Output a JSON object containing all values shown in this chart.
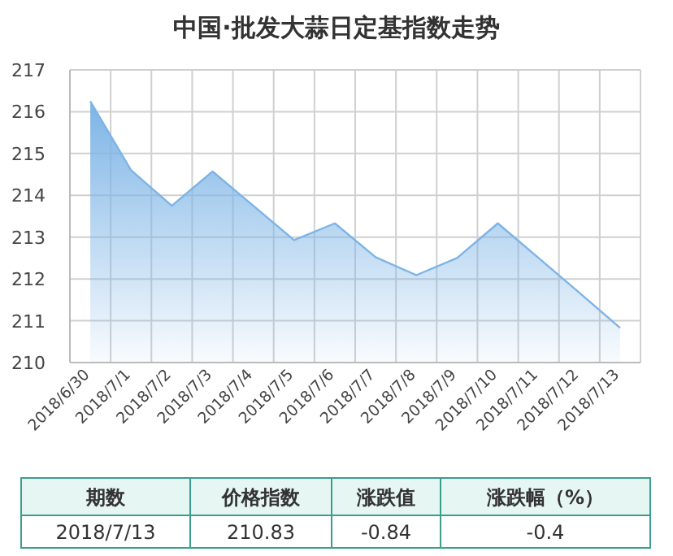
{
  "chart_data": {
    "type": "area",
    "title": "中国·批发大蒜日定基指数走势",
    "categories": [
      "2018/6/30",
      "2018/7/1",
      "2018/7/2",
      "2018/7/3",
      "2018/7/4",
      "2018/7/5",
      "2018/7/6",
      "2018/7/7",
      "2018/7/8",
      "2018/7/9",
      "2018/7/10",
      "2018/7/11",
      "2018/7/12",
      "2018/7/13"
    ],
    "series": [
      {
        "color": "#7db4e6",
        "values": [
          216.25,
          214.6,
          213.75,
          214.57,
          213.75,
          212.93,
          213.33,
          212.52,
          212.09,
          212.5,
          213.33,
          212.5,
          211.67,
          210.83
        ]
      }
    ],
    "ylim": [
      210,
      217
    ],
    "yticks": [
      210,
      211,
      212,
      213,
      214,
      215,
      216,
      217
    ],
    "grid": true,
    "annotations": [
      "期数",
      "价格指数",
      "涨跌值",
      "涨跌幅（%）",
      "2018/7/13",
      "210.83",
      "-0.84",
      "-0.4"
    ]
  }
}
